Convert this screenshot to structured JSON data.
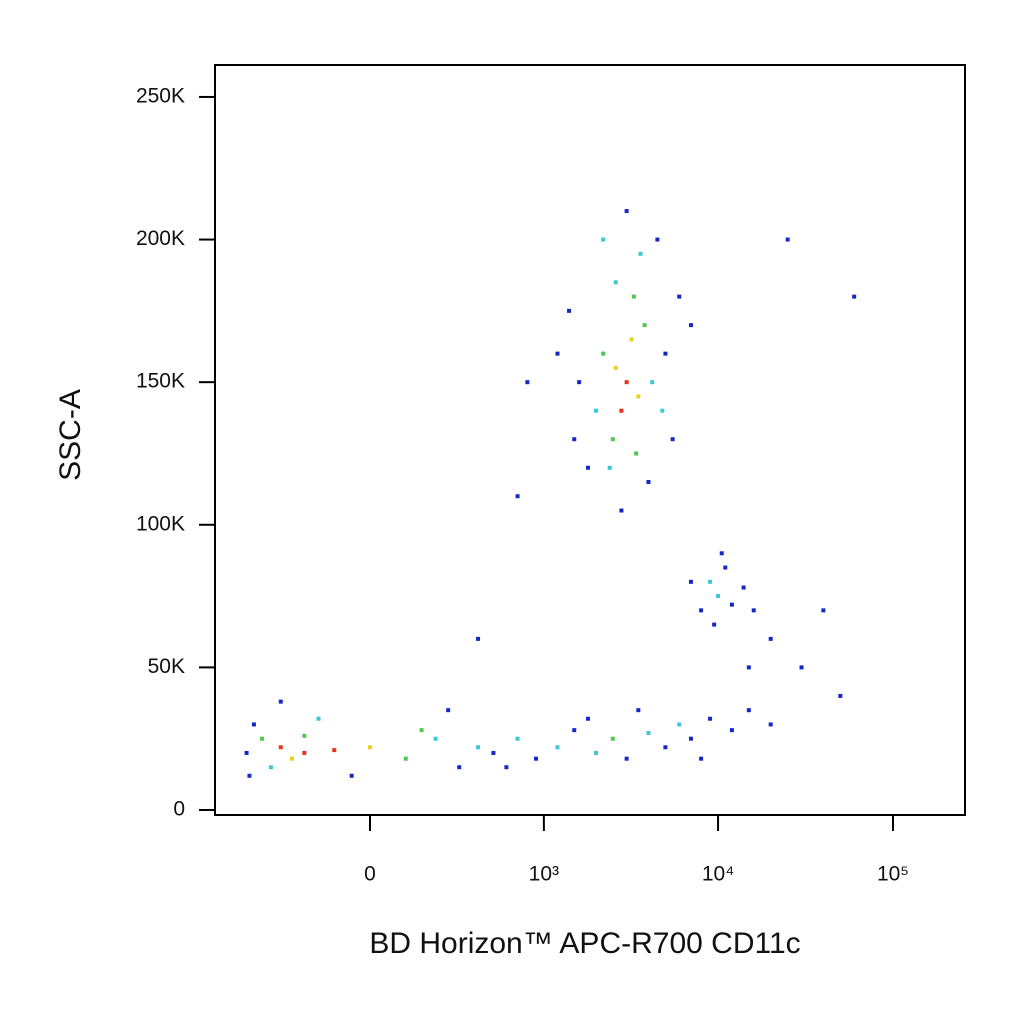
{
  "chart_data": {
    "type": "scatter",
    "x_scale": "biexponential",
    "xlabel": "BD Horizon™ APC-R700 CD11c",
    "ylabel": "SSC-A",
    "xlim": [
      -775,
      258000
    ],
    "ylim": [
      -1750,
      261200
    ],
    "xticks": [
      0,
      {
        "value": 1000,
        "label": "10³"
      },
      {
        "value": 10000,
        "label": "10⁴"
      },
      {
        "value": 100000,
        "label": "10⁵"
      }
    ],
    "yticks": [
      0,
      {
        "value": 50000,
        "label": "50K"
      },
      {
        "value": 100000,
        "label": "100K"
      },
      {
        "value": 150000,
        "label": "150K"
      },
      {
        "value": 200000,
        "label": "200K"
      },
      {
        "value": 250000,
        "label": "250K"
      }
    ],
    "x": [
      -300,
      -200,
      -100,
      -250,
      0,
      -400,
      100,
      -350,
      200,
      -500,
      300,
      -450,
      -150,
      250,
      -50,
      -480,
      150,
      -300,
      400,
      -200,
      500,
      700,
      900,
      1200,
      1500,
      2000,
      2500,
      3000,
      4000,
      5000,
      6000,
      7000,
      9000,
      12000,
      15000,
      20000,
      600,
      1800,
      3500,
      8000,
      3000,
      2800,
      3200,
      2600,
      3500,
      2500,
      3800,
      2200,
      3300,
      2000,
      4200,
      2400,
      3600,
      1600,
      5000,
      1800,
      4500,
      2800,
      1400,
      6000,
      3000,
      2200,
      1500,
      5500,
      4000,
      1200,
      7000,
      2600,
      3400,
      4800,
      10000,
      9000,
      12000,
      8000,
      11000,
      14000,
      9500,
      7000,
      16000,
      10500,
      20000,
      30000,
      40000,
      700,
      800,
      60000,
      25000,
      400,
      50000,
      15000
    ],
    "y": [
      22000,
      20000,
      21000,
      18000,
      22000,
      25000,
      18000,
      15000,
      25000,
      20000,
      15000,
      30000,
      32000,
      35000,
      12000,
      12000,
      28000,
      38000,
      22000,
      26000,
      20000,
      25000,
      18000,
      22000,
      28000,
      20000,
      25000,
      18000,
      27000,
      22000,
      30000,
      25000,
      32000,
      28000,
      35000,
      30000,
      15000,
      32000,
      35000,
      18000,
      150000,
      140000,
      165000,
      155000,
      145000,
      130000,
      170000,
      160000,
      180000,
      140000,
      150000,
      120000,
      195000,
      150000,
      160000,
      120000,
      200000,
      105000,
      175000,
      180000,
      210000,
      200000,
      130000,
      130000,
      115000,
      160000,
      170000,
      185000,
      125000,
      140000,
      75000,
      80000,
      72000,
      70000,
      85000,
      78000,
      65000,
      80000,
      70000,
      90000,
      60000,
      50000,
      70000,
      110000,
      150000,
      180000,
      200000,
      60000,
      40000,
      50000
    ],
    "colors": [
      "#e8321e",
      "#e8321e",
      "#e8321e",
      "#e6d21e",
      "#e6d21e",
      "#50c850",
      "#50c850",
      "#3cc8d2",
      "#3cc8d2",
      "#1428c8",
      "#1428c8",
      "#1428c8",
      "#3cc8d2",
      "#1428c8",
      "#1428c8",
      "#1428c8",
      "#50c850",
      "#1428c8",
      "#3cc8d2",
      "#50c850",
      "#1428c8",
      "#3cc8d2",
      "#1428c8",
      "#3cc8d2",
      "#1428c8",
      "#3cc8d2",
      "#50c850",
      "#1428c8",
      "#3cc8d2",
      "#1428c8",
      "#3cc8d2",
      "#1428c8",
      "#1428c8",
      "#1428c8",
      "#1428c8",
      "#1428c8",
      "#1428c8",
      "#1428c8",
      "#1428c8",
      "#1428c8",
      "#e8321e",
      "#e8321e",
      "#e6d21e",
      "#e6d21e",
      "#e6d21e",
      "#50c850",
      "#50c850",
      "#50c850",
      "#50c850",
      "#3cc8d2",
      "#3cc8d2",
      "#3cc8d2",
      "#3cc8d2",
      "#1428c8",
      "#1428c8",
      "#1428c8",
      "#1428c8",
      "#1428c8",
      "#1428c8",
      "#1428c8",
      "#1428c8",
      "#3cc8d2",
      "#1428c8",
      "#1428c8",
      "#1428c8",
      "#1428c8",
      "#1428c8",
      "#3cc8d2",
      "#50c850",
      "#3cc8d2",
      "#3cc8d2",
      "#3cc8d2",
      "#1428c8",
      "#1428c8",
      "#1428c8",
      "#1428c8",
      "#1428c8",
      "#1428c8",
      "#1428c8",
      "#1428c8",
      "#1428c8",
      "#1428c8",
      "#1428c8",
      "#1428c8",
      "#1428c8",
      "#1428c8",
      "#1428c8",
      "#1428c8",
      "#1428c8",
      "#1428c8"
    ]
  }
}
